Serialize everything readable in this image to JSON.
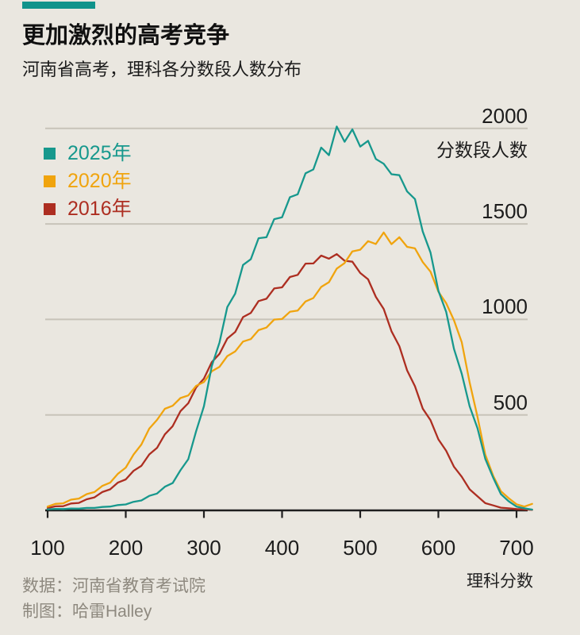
{
  "brand": {
    "tag_color": "#10938b"
  },
  "chart_data": {
    "type": "line",
    "title": "更加激烈的高考竞争",
    "subtitle": "河南省高考，理科各分数段人数分布",
    "x_axis_label": "理科分数",
    "y_axis_label": "分数段人数",
    "x_ticks": [
      100,
      200,
      300,
      400,
      500,
      600,
      700
    ],
    "y_ticks": [
      500,
      1000,
      1500,
      2000
    ],
    "xlim": [
      100,
      720
    ],
    "ylim": [
      0,
      2050
    ],
    "grid": "horizontal",
    "legend_position": "top-left",
    "x_start": 100,
    "x_step": 10,
    "series": [
      {
        "name": "2025年",
        "color": "#17988d",
        "values": [
          6,
          8,
          7,
          10,
          9,
          13,
          13,
          18,
          20,
          28,
          31,
          45,
          52,
          76,
          88,
          124,
          143,
          210,
          268,
          415,
          545,
          755,
          880,
          1065,
          1135,
          1285,
          1315,
          1425,
          1430,
          1525,
          1535,
          1640,
          1655,
          1765,
          1785,
          1900,
          1860,
          2010,
          1930,
          1995,
          1905,
          1935,
          1840,
          1815,
          1760,
          1755,
          1670,
          1630,
          1460,
          1350,
          1150,
          1040,
          845,
          715,
          545,
          430,
          270,
          172,
          85,
          48,
          20,
          11,
          4
        ]
      },
      {
        "name": "2020年",
        "color": "#f0a40e",
        "values": [
          20,
          34,
          37,
          56,
          62,
          85,
          96,
          128,
          145,
          192,
          224,
          292,
          345,
          428,
          474,
          532,
          548,
          588,
          602,
          652,
          672,
          728,
          752,
          808,
          832,
          884,
          897,
          944,
          957,
          999,
          1002,
          1040,
          1046,
          1094,
          1112,
          1170,
          1195,
          1266,
          1295,
          1356,
          1365,
          1410,
          1395,
          1455,
          1394,
          1430,
          1380,
          1372,
          1300,
          1250,
          1145,
          1085,
          995,
          880,
          670,
          490,
          292,
          182,
          100,
          64,
          32,
          20,
          34
        ]
      },
      {
        "name": "2016年",
        "color": "#ad2e21",
        "values": [
          12,
          21,
          22,
          36,
          39,
          58,
          68,
          96,
          110,
          146,
          162,
          207,
          233,
          293,
          327,
          398,
          441,
          519,
          561,
          644,
          690,
          776,
          820,
          900,
          934,
          1012,
          1034,
          1096,
          1108,
          1162,
          1168,
          1222,
          1233,
          1292,
          1293,
          1334,
          1318,
          1342,
          1307,
          1302,
          1243,
          1210,
          1118,
          1055,
          938,
          860,
          733,
          650,
          533,
          472,
          372,
          312,
          228,
          176,
          110,
          74,
          38,
          26,
          14,
          11,
          7,
          5,
          3
        ]
      }
    ]
  },
  "footer": {
    "source": "数据：河南省教育考试院",
    "credit": "制图：哈雷Halley"
  }
}
